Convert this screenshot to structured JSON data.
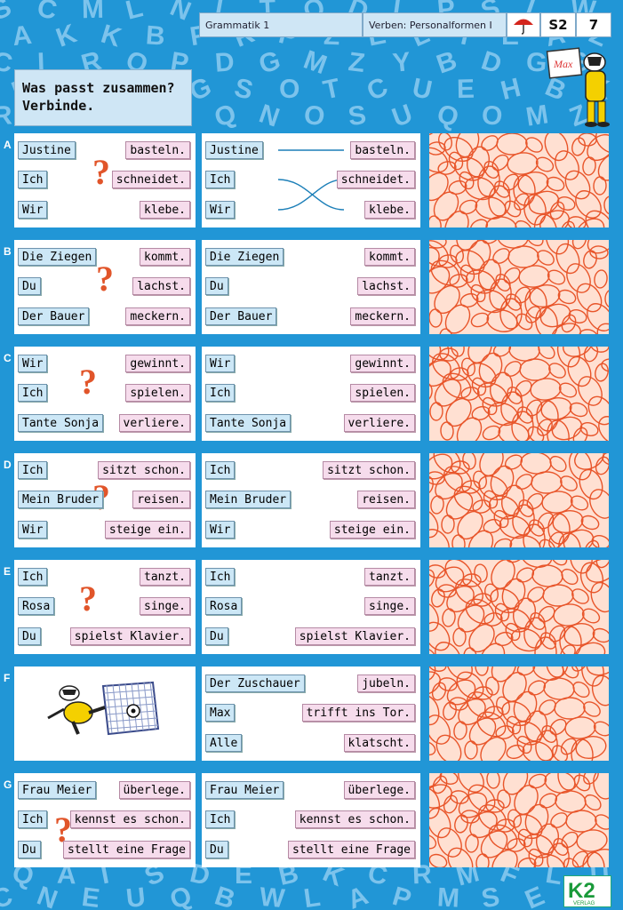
{
  "header": {
    "subject": "Grammatik 1",
    "topic": "Verben: Personalformen I",
    "level": "S2",
    "page": "7",
    "icon": "umbrella-icon"
  },
  "instruction": {
    "line1": "Was passt zusammen?",
    "line2": "Verbinde."
  },
  "mascot_sign": "Max",
  "background_letters": [
    "S",
    "C",
    "M",
    "L",
    "N",
    "L",
    "T",
    "O",
    "D",
    "I",
    "P",
    "S",
    "L",
    "W",
    "A",
    "K",
    "K",
    "B",
    "F",
    "R",
    "P",
    "Z",
    "E",
    "L",
    "T",
    "E",
    "A",
    "Z",
    "C",
    "I",
    "R",
    "O",
    "P",
    "D",
    "G",
    "M",
    "Z",
    "Y",
    "B",
    "D",
    "G",
    "S",
    "B",
    "N",
    "Z",
    "M",
    "G",
    "S",
    "O",
    "T",
    "C",
    "U",
    "E",
    "H",
    "B",
    "K",
    "R",
    "P",
    "C",
    "I",
    "K",
    "Q",
    "N",
    "O",
    "S",
    "U",
    "Q",
    "O",
    "M",
    "Z",
    "Q",
    "A",
    "I",
    "S",
    "D",
    "E",
    "B",
    "K",
    "C",
    "R",
    "M",
    "F",
    "L",
    "U",
    "C",
    "N",
    "E",
    "U",
    "Q",
    "B",
    "W",
    "L",
    "A",
    "P",
    "M",
    "S",
    "E",
    "J",
    "R",
    "E",
    "A",
    "F",
    "U",
    "L",
    "G",
    "T",
    "O",
    "W",
    "P",
    "F",
    "D",
    "H",
    "G",
    "I",
    "O",
    "P",
    "S",
    "Y",
    "B",
    "J",
    "A",
    "C",
    "P",
    "K",
    "K"
  ],
  "rows": [
    {
      "label": "A",
      "subjects": [
        "Justine",
        "Ich",
        "Wir"
      ],
      "verbs": [
        "basteln.",
        "schneidet.",
        "klebe."
      ]
    },
    {
      "label": "B",
      "subjects": [
        "Die Ziegen",
        "Du",
        "Der Bauer"
      ],
      "verbs": [
        "kommt.",
        "lachst.",
        "meckern."
      ]
    },
    {
      "label": "C",
      "subjects": [
        "Wir",
        "Ich",
        "Tante Sonja"
      ],
      "verbs": [
        "gewinnt.",
        "spielen.",
        "verliere."
      ]
    },
    {
      "label": "D",
      "subjects": [
        "Ich",
        "Mein Bruder",
        "Wir"
      ],
      "verbs": [
        "sitzt schon.",
        "reisen.",
        "steige ein."
      ]
    },
    {
      "label": "E",
      "subjects": [
        "Ich",
        "Rosa",
        "Du"
      ],
      "verbs": [
        "tanzt.",
        "singe.",
        "spielst Klavier."
      ]
    },
    {
      "label": "F",
      "subjects": [
        "Der Zuschauer",
        "Max",
        "Alle"
      ],
      "verbs": [
        "jubeln.",
        "trifft ins Tor.",
        "klatscht."
      ]
    },
    {
      "label": "G",
      "subjects": [
        "Frau Meier",
        "Ich",
        "Du"
      ],
      "verbs": [
        "überlege.",
        "kennst es schon.",
        "stellt eine Frage"
      ]
    }
  ],
  "example_connections": [
    [
      0,
      0
    ],
    [
      1,
      2
    ],
    [
      2,
      1
    ]
  ],
  "colors": {
    "background": "#2196d6",
    "subject_chip": "#cce7f6",
    "verb_chip": "#f6dcec",
    "question_mark": "#e1552a",
    "scribble": "#e8552a"
  },
  "publisher": {
    "logo": "K2",
    "sub": "VERLAG"
  }
}
